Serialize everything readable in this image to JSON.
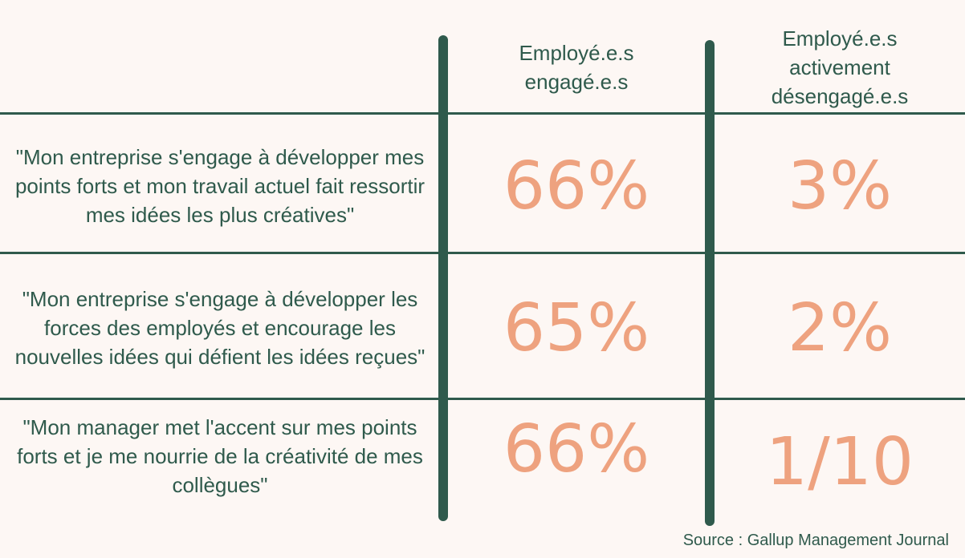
{
  "chart_data": {
    "type": "table",
    "columns": [
      "",
      "Employé.e.s\nengagé.e.s",
      "Employé.e.s\nactivement\ndésengagé.e.s"
    ],
    "rows": [
      {
        "statement": "\"Mon entreprise s'engage à développer mes points forts et mon travail actuel fait ressortir mes idées les plus créatives\"",
        "values": [
          "66%",
          "3%"
        ]
      },
      {
        "statement": "\"Mon entreprise s'engage à développer les forces des employés et encourage les nouvelles idées qui défient les idées reçues\"",
        "values": [
          "65%",
          "2%"
        ]
      },
      {
        "statement": "\"Mon manager met l'accent sur mes points forts et je me nourrie de la créativité de mes collègues\"",
        "values": [
          "66%",
          "1/10"
        ]
      }
    ],
    "source": "Source : Gallup Management Journal"
  },
  "colors": {
    "lines": "#2f5a4c",
    "text": "#2f5a4c",
    "values": "#eea27f",
    "background": "#fdf7f4"
  }
}
